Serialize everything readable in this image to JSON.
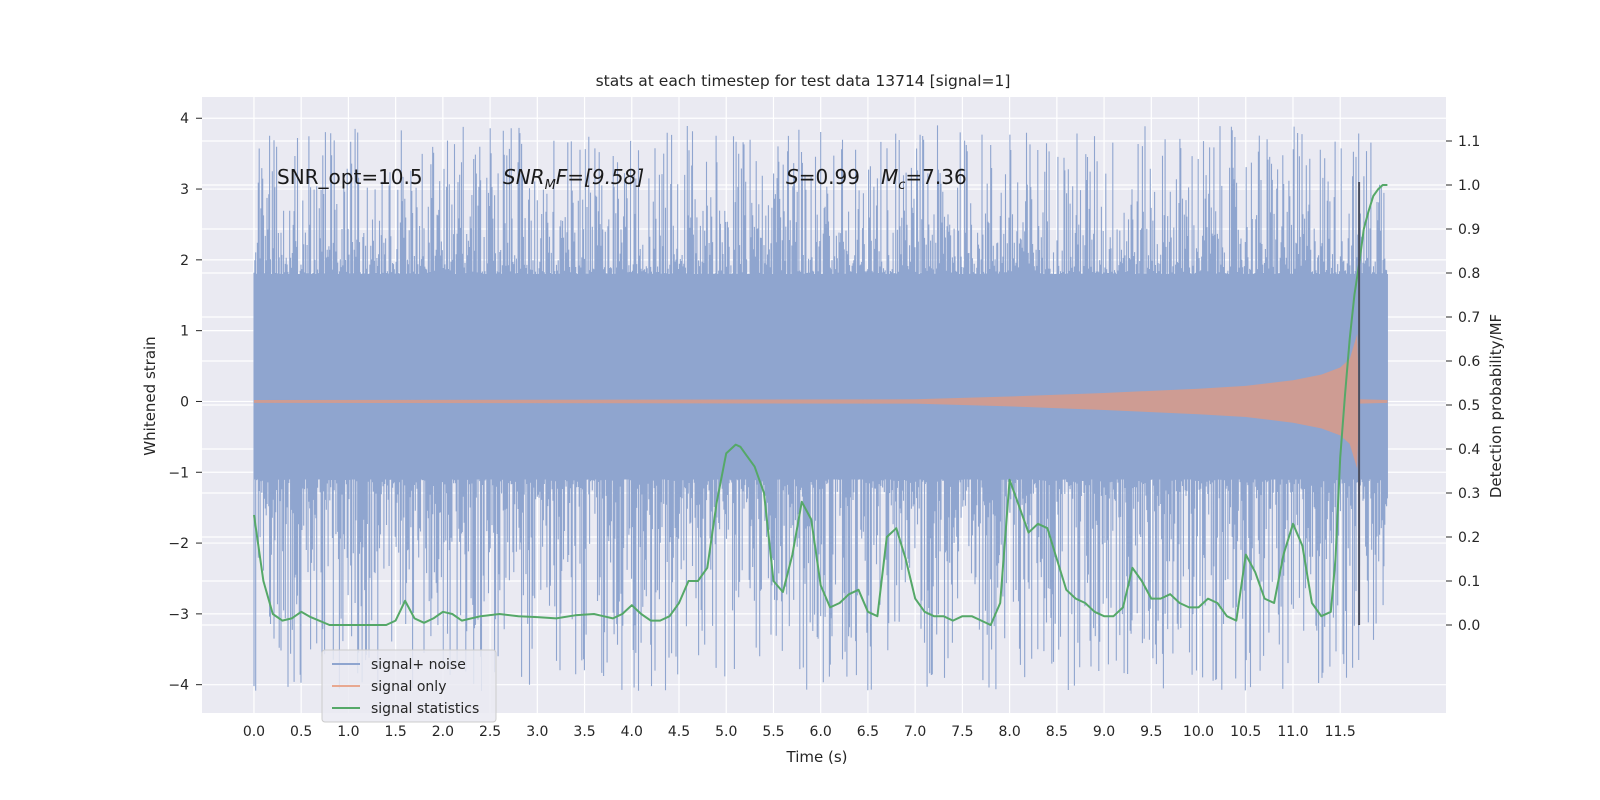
{
  "chart_data": {
    "type": "line",
    "title": "stats at each timestep for test data 13714 [signal=1]",
    "xlabel": "Time (s)",
    "ylabel": "Whitened strain",
    "ylabel_right": "Detection probability/MF",
    "xlim": [
      -0.55,
      12.62
    ],
    "ylim": [
      -4.4,
      4.3
    ],
    "ylim_right": [
      -0.2,
      1.2
    ],
    "x_ticks": [
      "0.0",
      "0.5",
      "1.0",
      "1.5",
      "2.0",
      "2.5",
      "3.0",
      "3.5",
      "4.0",
      "4.5",
      "5.0",
      "5.5",
      "6.0",
      "6.5",
      "7.0",
      "7.5",
      "8.0",
      "8.5",
      "9.0",
      "9.5",
      "10.0",
      "10.5",
      "11.0",
      "11.5"
    ],
    "y_ticks": [
      "4",
      "3",
      "2",
      "1",
      "0",
      "−1",
      "−2",
      "−3",
      "−4"
    ],
    "y_ticks_right": [
      "1.1",
      "1.0",
      "0.9",
      "0.8",
      "0.7",
      "0.6",
      "0.5",
      "0.4",
      "0.3",
      "0.2",
      "0.1",
      "0.0"
    ],
    "grid": true,
    "annotations": {
      "snr_opt": "SNR_opt=10.5",
      "snr_mf_label": "SNR",
      "snr_mf_sub": "M",
      "snr_mf_value": "F=[9.58]",
      "s_label": "S",
      "s_value": "=0.99",
      "mc_label": "M",
      "mc_sub": "c",
      "mc_value": "=7.36"
    },
    "legend": {
      "placement": "lower-left",
      "entries": [
        "signal+ noise",
        "signal only",
        "signal statistics"
      ]
    },
    "colors": {
      "noise": "#8fa5cf",
      "signal": "#d99a88",
      "stats": "#55a868",
      "vline": "#4a4f60",
      "background": "#eaeaf2"
    },
    "series": [
      {
        "name": "signal+ noise",
        "axis": "left",
        "t_range": [
          0.0,
          12.0
        ],
        "envelope_top": 1.8,
        "envelope_bottom": -1.1,
        "spike_range": [
          -4.1,
          3.9
        ]
      },
      {
        "name": "signal only",
        "axis": "left",
        "envelope": {
          "t": [
            0.0,
            7.0,
            8.0,
            9.0,
            10.0,
            10.5,
            11.0,
            11.3,
            11.5,
            11.6,
            11.68,
            11.7,
            12.0
          ],
          "amp": [
            0.02,
            0.03,
            0.07,
            0.12,
            0.18,
            0.22,
            0.3,
            0.38,
            0.48,
            0.6,
            0.95,
            0.03,
            0.02
          ]
        }
      },
      {
        "name": "signal statistics",
        "axis": "right",
        "x": [
          0.0,
          0.1,
          0.2,
          0.3,
          0.4,
          0.5,
          0.6,
          0.8,
          1.0,
          1.2,
          1.4,
          1.5,
          1.6,
          1.7,
          1.8,
          1.9,
          2.0,
          2.1,
          2.2,
          2.4,
          2.6,
          2.8,
          3.0,
          3.2,
          3.4,
          3.6,
          3.7,
          3.8,
          3.9,
          4.0,
          4.1,
          4.2,
          4.3,
          4.4,
          4.5,
          4.6,
          4.7,
          4.8,
          4.9,
          5.0,
          5.1,
          5.15,
          5.2,
          5.3,
          5.4,
          5.5,
          5.6,
          5.7,
          5.8,
          5.9,
          6.0,
          6.1,
          6.2,
          6.3,
          6.4,
          6.5,
          6.6,
          6.7,
          6.8,
          6.9,
          7.0,
          7.1,
          7.2,
          7.3,
          7.4,
          7.5,
          7.6,
          7.7,
          7.8,
          7.9,
          8.0,
          8.1,
          8.2,
          8.3,
          8.4,
          8.5,
          8.6,
          8.7,
          8.8,
          8.9,
          9.0,
          9.1,
          9.2,
          9.3,
          9.4,
          9.5,
          9.6,
          9.7,
          9.8,
          9.9,
          10.0,
          10.1,
          10.2,
          10.3,
          10.4,
          10.5,
          10.6,
          10.7,
          10.8,
          10.9,
          11.0,
          11.1,
          11.2,
          11.3,
          11.4,
          11.45,
          11.5,
          11.55,
          11.6,
          11.65,
          11.7,
          11.75,
          11.8,
          11.85,
          11.9,
          11.95,
          12.0
        ],
        "values": [
          0.25,
          0.1,
          0.025,
          0.01,
          0.015,
          0.03,
          0.018,
          0.0,
          0.0,
          0.0,
          0.0,
          0.01,
          0.055,
          0.015,
          0.005,
          0.015,
          0.03,
          0.025,
          0.01,
          0.02,
          0.025,
          0.02,
          0.018,
          0.015,
          0.022,
          0.025,
          0.02,
          0.015,
          0.025,
          0.045,
          0.025,
          0.01,
          0.01,
          0.02,
          0.05,
          0.1,
          0.1,
          0.13,
          0.28,
          0.39,
          0.41,
          0.405,
          0.39,
          0.36,
          0.3,
          0.1,
          0.075,
          0.16,
          0.28,
          0.24,
          0.09,
          0.04,
          0.05,
          0.07,
          0.08,
          0.03,
          0.02,
          0.2,
          0.22,
          0.15,
          0.06,
          0.03,
          0.02,
          0.02,
          0.01,
          0.02,
          0.02,
          0.01,
          0.0,
          0.05,
          0.33,
          0.27,
          0.21,
          0.23,
          0.22,
          0.15,
          0.08,
          0.06,
          0.05,
          0.03,
          0.02,
          0.02,
          0.04,
          0.13,
          0.1,
          0.06,
          0.06,
          0.07,
          0.05,
          0.04,
          0.04,
          0.06,
          0.05,
          0.02,
          0.01,
          0.16,
          0.12,
          0.06,
          0.05,
          0.16,
          0.23,
          0.18,
          0.05,
          0.02,
          0.03,
          0.15,
          0.38,
          0.52,
          0.65,
          0.75,
          0.82,
          0.9,
          0.94,
          0.975,
          0.99,
          1.0,
          1.0
        ]
      }
    ],
    "vline": {
      "x": 11.7,
      "y0": 0.0,
      "y1": 3.1
    }
  }
}
